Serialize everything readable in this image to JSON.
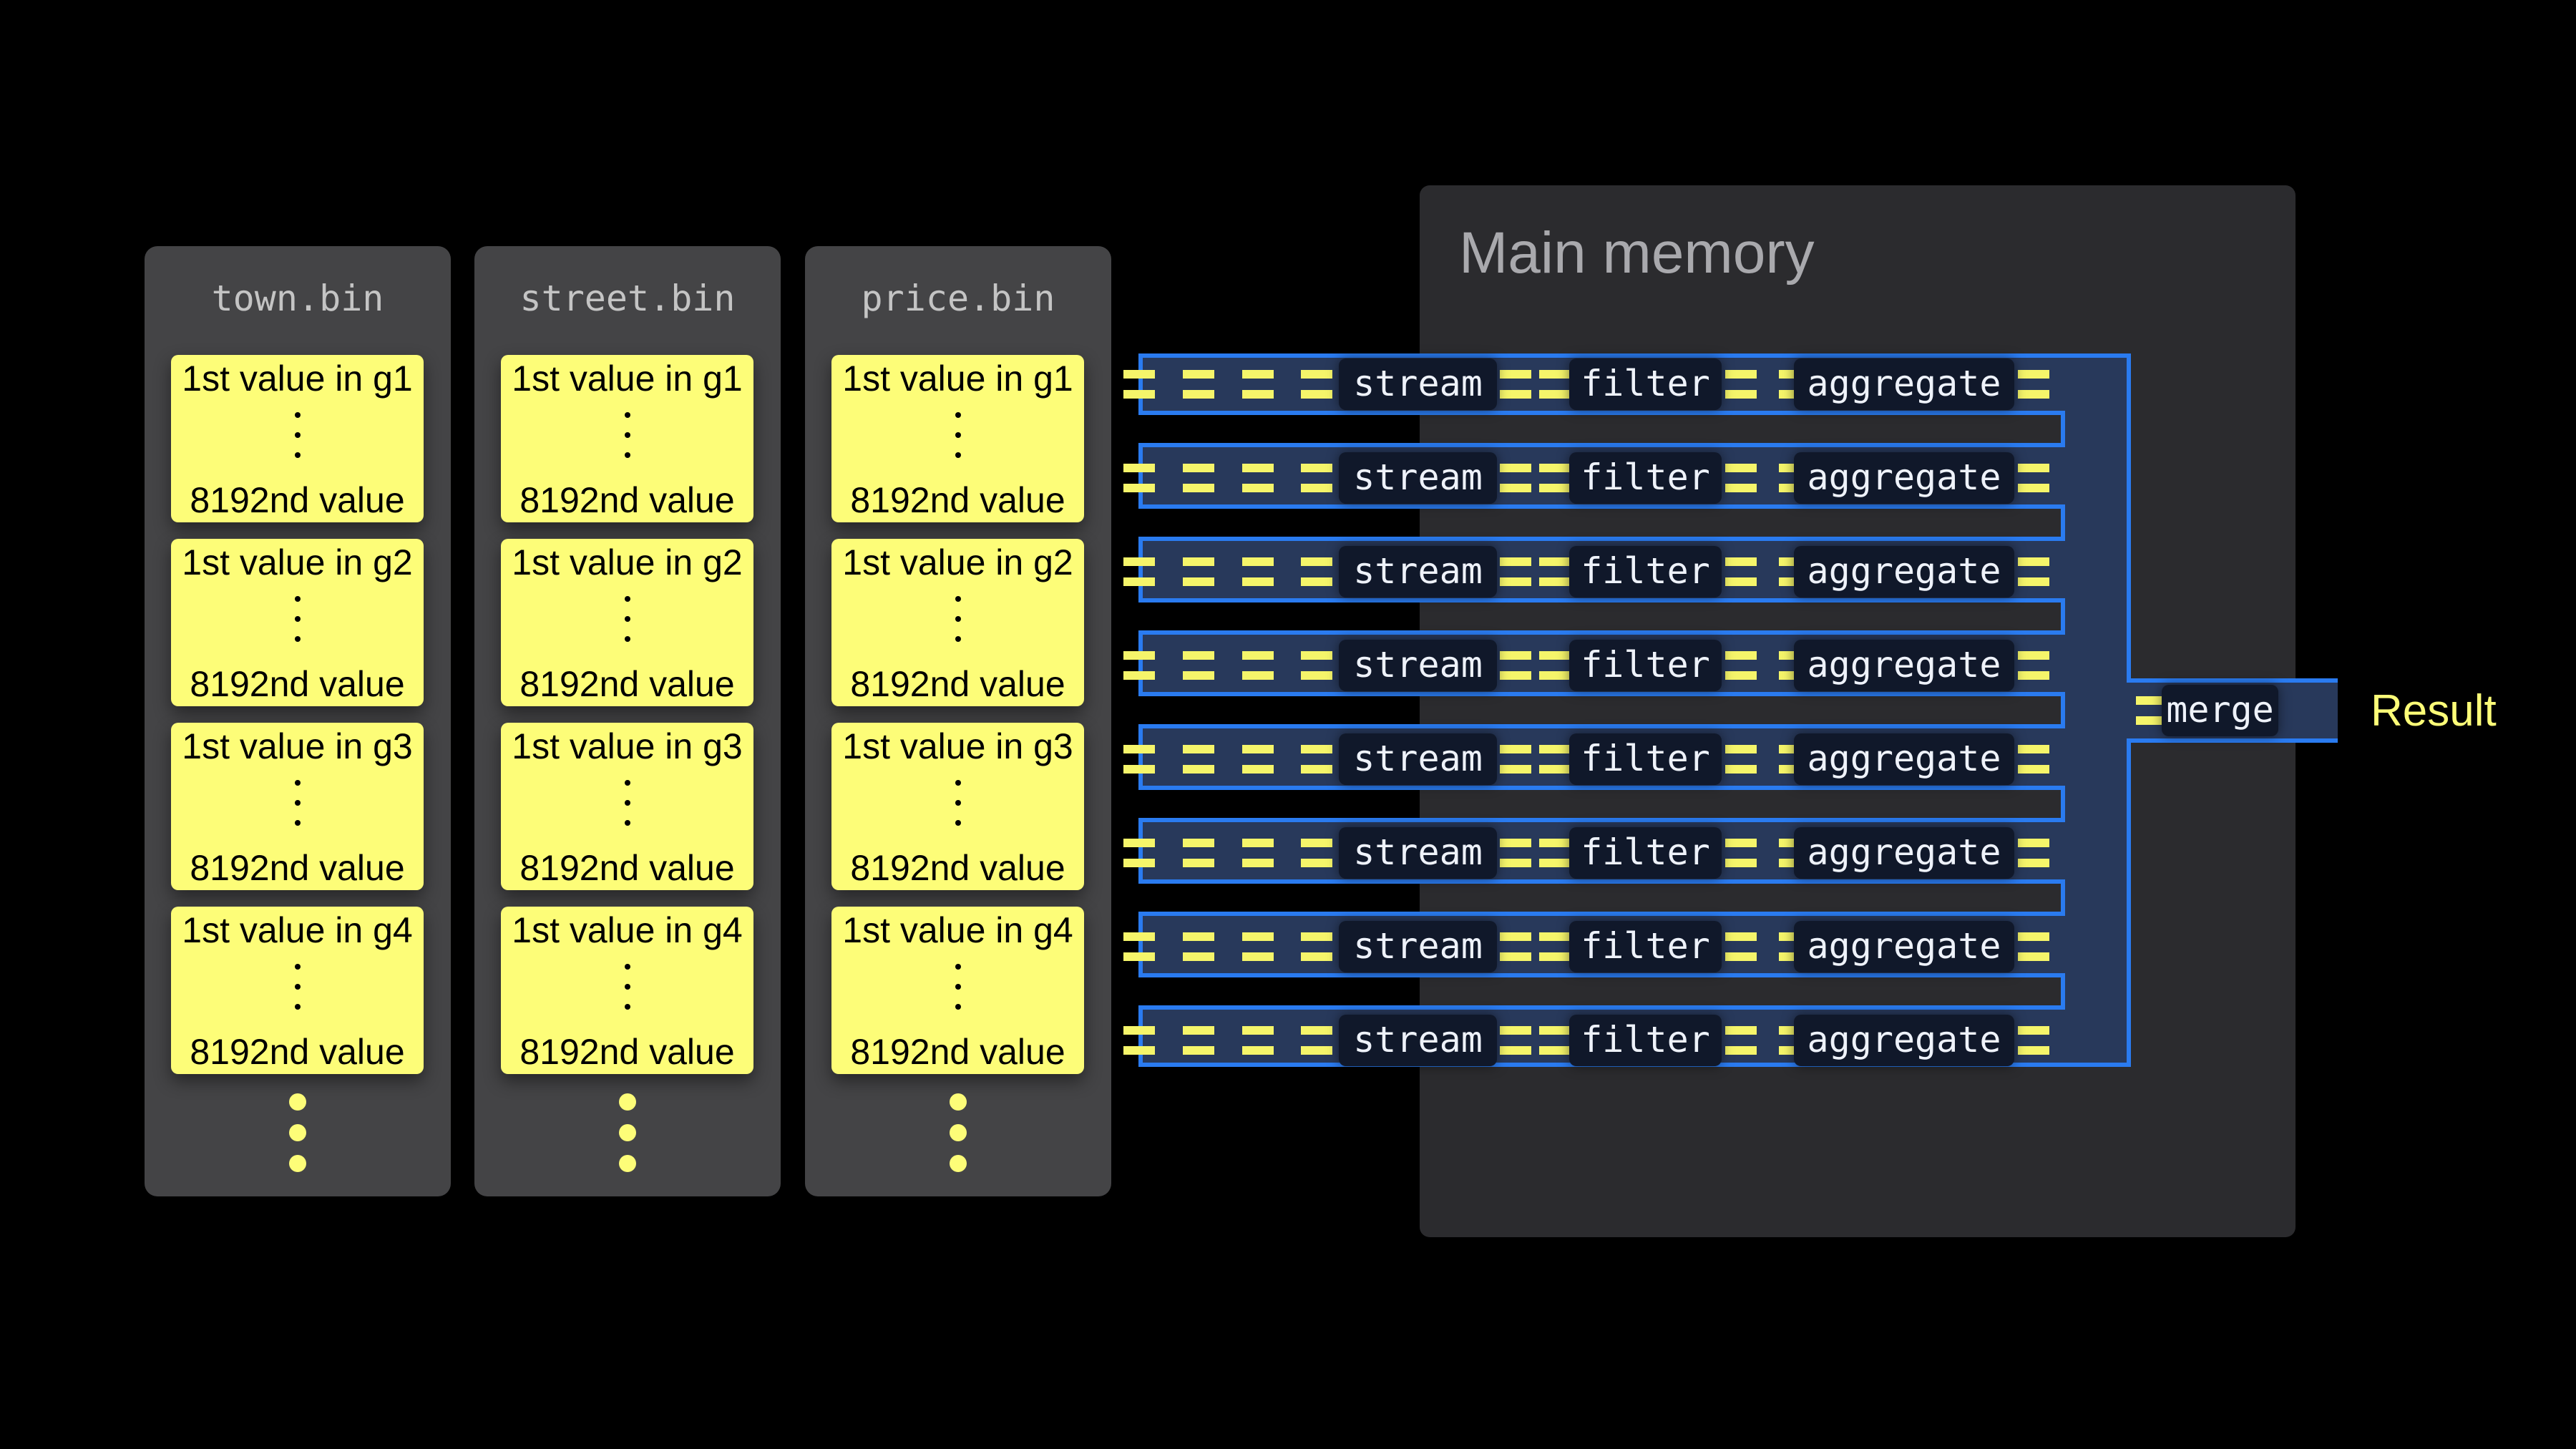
{
  "columns": [
    {
      "file": "town.bin"
    },
    {
      "file": "street.bin"
    },
    {
      "file": "price.bin"
    }
  ],
  "granules": [
    {
      "first": "1st value in g1",
      "last": "8192nd value"
    },
    {
      "first": "1st value in g2",
      "last": "8192nd value"
    },
    {
      "first": "1st value in g3",
      "last": "8192nd value"
    },
    {
      "first": "1st value in g4",
      "last": "8192nd value"
    }
  ],
  "memory": {
    "title": "Main memory"
  },
  "pipeline": {
    "lane_count": 8,
    "stages": [
      "stream",
      "filter",
      "aggregate"
    ],
    "merge": "merge",
    "result": "Result"
  },
  "colors": {
    "chunk": "#fdfd78",
    "lane_border": "#2a7bf0",
    "lane_fill": "#28395b",
    "memory": "#2b2b2e",
    "column": "#444446"
  }
}
